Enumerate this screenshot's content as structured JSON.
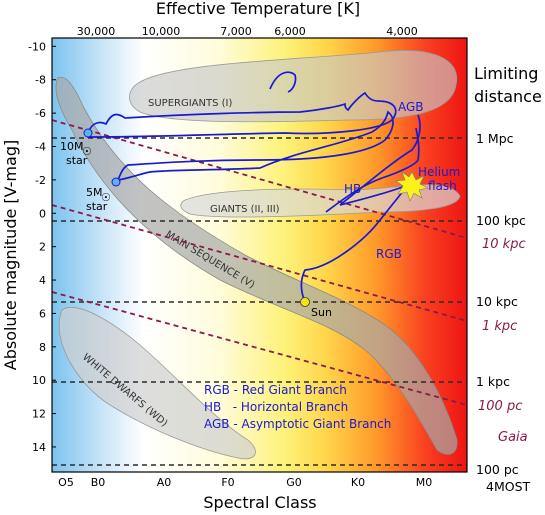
{
  "chart_data": {
    "type": "scatter",
    "title": "",
    "xlabel": "Spectral Class",
    "ylabel": "Absolute magnitude [V-mag]",
    "top_axis_label": "Effective Temperature [K]",
    "ylim": [
      15.5,
      -10.5
    ],
    "spectral_classes": [
      "O5",
      "B0",
      "A0",
      "F0",
      "G0",
      "K0",
      "M0"
    ],
    "temperature_ticks": [
      "30,000",
      "10,000",
      "7,000",
      "6,000",
      "4,000"
    ],
    "y_ticks": [
      -10,
      -8,
      -6,
      -4,
      -2,
      0,
      2,
      4,
      6,
      8,
      10,
      12,
      14
    ],
    "regions": {
      "supergiants": "SUPERGIANTS (I)",
      "giants": "GIANTS (II, III)",
      "main_sequence": "MAIN SEQUENCE (V)",
      "white_dwarfs": "WHITE DWARFS (WD)"
    },
    "stars": [
      {
        "label": "10M",
        "sub": "star",
        "magnitude": -4.0
      },
      {
        "label": "5M",
        "sub": "star",
        "magnitude": -1.7
      },
      {
        "label": "Sun",
        "magnitude": 4.8
      }
    ],
    "track_labels": {
      "agb": "AGB",
      "hb": "HB",
      "rgb": "RGB",
      "helium_flash_1": "Helium",
      "helium_flash_2": "flash"
    },
    "legend": [
      "RGB - Red Giant Branch",
      "HB   - Horizontal Branch",
      "AGB - Asymptotic Giant Branch"
    ],
    "limiting_distance_title": [
      "Limiting",
      "distance"
    ],
    "limit_lines_black": [
      {
        "magnitude": -4.6,
        "label": "1 Mpc"
      },
      {
        "magnitude": 0.4,
        "label": "100 kpc"
      },
      {
        "magnitude": 5.4,
        "label": "10 kpc"
      },
      {
        "magnitude": 10.3,
        "label": "1 kpc"
      },
      {
        "magnitude": 15.3,
        "label": "100 pc",
        "sub": "4MOST"
      }
    ],
    "limit_labels_purple": [
      {
        "label": "10 kpc"
      },
      {
        "label": "1 kpc"
      },
      {
        "label": "100 pc",
        "sub": "Gaia"
      }
    ]
  }
}
